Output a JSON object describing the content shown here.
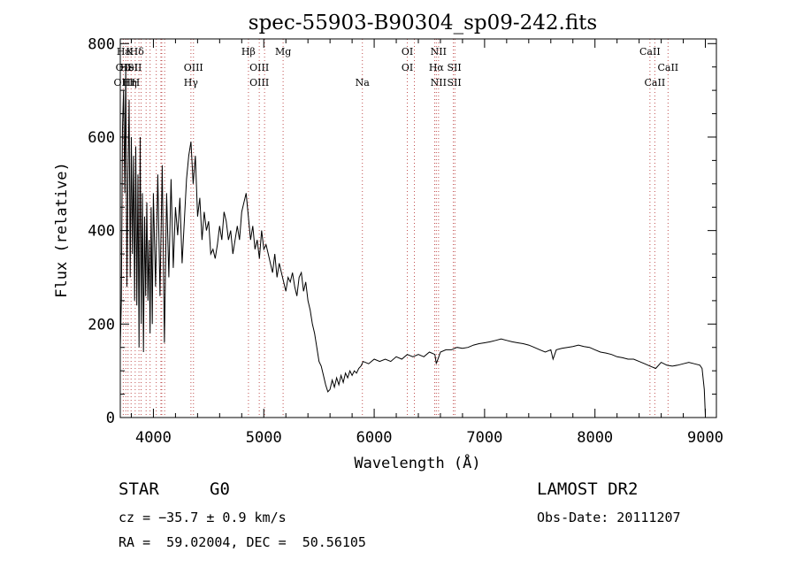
{
  "chart_data": {
    "type": "line",
    "title": "spec-55903-B90304_sp09-242.fits",
    "xlabel": "Wavelength (Å)",
    "ylabel": "Flux (relative)",
    "xlim": [
      3700,
      9100
    ],
    "ylim": [
      0,
      810
    ],
    "xticks": [
      4000,
      5000,
      6000,
      7000,
      8000,
      9000
    ],
    "yticks": [
      0,
      200,
      400,
      600,
      800
    ],
    "grid": false,
    "series": [
      {
        "color": "#000000",
        "x": [
          3700,
          3710,
          3720,
          3730,
          3740,
          3750,
          3760,
          3770,
          3780,
          3790,
          3800,
          3810,
          3820,
          3830,
          3840,
          3850,
          3860,
          3870,
          3880,
          3890,
          3900,
          3910,
          3920,
          3930,
          3940,
          3950,
          3960,
          3970,
          3980,
          3990,
          4000,
          4020,
          4040,
          4060,
          4080,
          4100,
          4120,
          4140,
          4160,
          4180,
          4200,
          4220,
          4240,
          4260,
          4280,
          4300,
          4320,
          4340,
          4360,
          4380,
          4400,
          4420,
          4440,
          4460,
          4480,
          4500,
          4520,
          4540,
          4560,
          4580,
          4600,
          4620,
          4640,
          4660,
          4680,
          4700,
          4720,
          4740,
          4760,
          4780,
          4800,
          4820,
          4840,
          4860,
          4880,
          4900,
          4920,
          4940,
          4960,
          4980,
          5000,
          5020,
          5040,
          5060,
          5080,
          5100,
          5120,
          5140,
          5160,
          5180,
          5200,
          5220,
          5240,
          5260,
          5280,
          5300,
          5320,
          5340,
          5360,
          5380,
          5400,
          5420,
          5440,
          5460,
          5480,
          5500,
          5520,
          5540,
          5560,
          5580,
          5600,
          5620,
          5640,
          5660,
          5680,
          5700,
          5720,
          5740,
          5760,
          5780,
          5800,
          5820,
          5840,
          5860,
          5880,
          5900,
          5950,
          6000,
          6050,
          6100,
          6150,
          6200,
          6250,
          6300,
          6350,
          6400,
          6450,
          6500,
          6550,
          6563,
          6600,
          6650,
          6700,
          6750,
          6800,
          6850,
          6900,
          6950,
          7000,
          7050,
          7100,
          7150,
          7200,
          7250,
          7300,
          7350,
          7400,
          7450,
          7500,
          7550,
          7600,
          7620,
          7650,
          7700,
          7750,
          7800,
          7850,
          7900,
          7950,
          8000,
          8050,
          8100,
          8150,
          8200,
          8250,
          8300,
          8350,
          8400,
          8450,
          8500,
          8550,
          8600,
          8650,
          8700,
          8750,
          8800,
          8850,
          8900,
          8950,
          8970,
          8990,
          9000
        ],
        "values": [
          150,
          250,
          620,
          700,
          480,
          750,
          280,
          520,
          680,
          300,
          600,
          350,
          560,
          250,
          580,
          240,
          520,
          150,
          600,
          200,
          480,
          140,
          430,
          260,
          460,
          250,
          380,
          180,
          450,
          200,
          480,
          280,
          520,
          260,
          540,
          160,
          480,
          300,
          510,
          320,
          450,
          390,
          470,
          330,
          420,
          510,
          560,
          590,
          500,
          560,
          430,
          470,
          380,
          440,
          400,
          420,
          350,
          360,
          340,
          370,
          410,
          380,
          440,
          420,
          380,
          400,
          350,
          380,
          410,
          380,
          440,
          460,
          480,
          430,
          380,
          410,
          360,
          380,
          340,
          400,
          360,
          370,
          350,
          330,
          310,
          350,
          300,
          330,
          310,
          290,
          270,
          300,
          290,
          310,
          280,
          260,
          300,
          310,
          270,
          290,
          250,
          230,
          200,
          180,
          150,
          120,
          110,
          90,
          70,
          55,
          60,
          80,
          65,
          85,
          70,
          90,
          75,
          95,
          85,
          100,
          90,
          100,
          95,
          105,
          110,
          120,
          115,
          125,
          120,
          125,
          120,
          130,
          125,
          135,
          130,
          135,
          130,
          140,
          135,
          115,
          140,
          145,
          145,
          150,
          148,
          150,
          155,
          158,
          160,
          162,
          165,
          168,
          165,
          162,
          160,
          158,
          155,
          150,
          145,
          140,
          145,
          125,
          145,
          148,
          150,
          152,
          155,
          152,
          150,
          145,
          140,
          138,
          135,
          130,
          128,
          125,
          125,
          120,
          115,
          110,
          105,
          118,
          112,
          110,
          112,
          115,
          118,
          115,
          112,
          105,
          60,
          5
        ]
      }
    ],
    "annotations": [
      {
        "label": "Hε",
        "x": 3728,
        "row": 1
      },
      {
        "label": "K",
        "x": 3785,
        "row": 1
      },
      {
        "label": "Hδ",
        "x": 3850,
        "row": 1
      },
      {
        "label": "OII",
        "x": 3728,
        "row": 2
      },
      {
        "label": "HeI",
        "x": 3780,
        "row": 2
      },
      {
        "label": "SII",
        "x": 3830,
        "row": 2
      },
      {
        "label": "OIII",
        "x": 3728,
        "row": 3
      },
      {
        "label": "Hη",
        "x": 3785,
        "row": 3
      },
      {
        "label": "H",
        "x": 3840,
        "row": 3
      },
      {
        "label": "OIII",
        "x": 4363,
        "row": 2
      },
      {
        "label": "Hγ",
        "x": 4340,
        "row": 3
      },
      {
        "label": "Hβ",
        "x": 4861,
        "row": 1
      },
      {
        "label": "OIII",
        "x": 4959,
        "row": 2
      },
      {
        "label": "OIII",
        "x": 4959,
        "row": 3
      },
      {
        "label": "Mg",
        "x": 5175,
        "row": 1
      },
      {
        "label": "Na",
        "x": 5893,
        "row": 3
      },
      {
        "label": "OI",
        "x": 6300,
        "row": 1
      },
      {
        "label": "OI",
        "x": 6300,
        "row": 2
      },
      {
        "label": "NII",
        "x": 6583,
        "row": 1
      },
      {
        "label": "Hα",
        "x": 6563,
        "row": 2
      },
      {
        "label": "SII",
        "x": 6725,
        "row": 2
      },
      {
        "label": "NII",
        "x": 6583,
        "row": 3
      },
      {
        "label": "SII",
        "x": 6725,
        "row": 3
      },
      {
        "label": "CaII",
        "x": 8498,
        "row": 1
      },
      {
        "label": "CaII",
        "x": 8662,
        "row": 2
      },
      {
        "label": "CaII",
        "x": 8542,
        "row": 3
      }
    ],
    "line_markers": [
      3727,
      3750,
      3770,
      3798,
      3835,
      3869,
      3889,
      3934,
      3970,
      4026,
      4068,
      4076,
      4102,
      4340,
      4363,
      4861,
      4959,
      5007,
      5175,
      5893,
      6300,
      6364,
      6548,
      6563,
      6583,
      6717,
      6731,
      8498,
      8542,
      8662
    ]
  },
  "info": {
    "object_class": "STAR",
    "subclass": "G0",
    "survey": "LAMOST DR2",
    "redshift": "cz = −35.7 ± 0.9 km/s",
    "obs_date": "Obs-Date: 20111207",
    "coords": "RA =  59.02004, DEC =  50.56105"
  }
}
